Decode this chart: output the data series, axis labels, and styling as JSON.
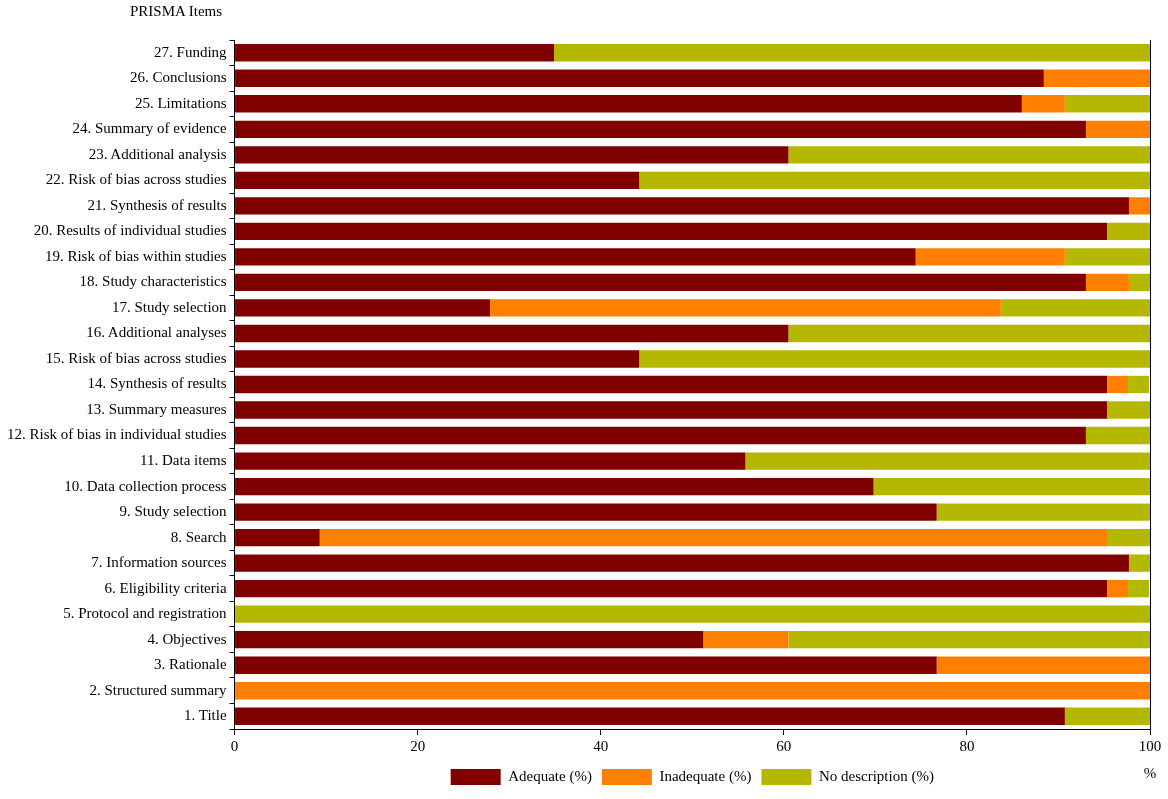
{
  "chart_data": {
    "type": "bar",
    "orientation": "horizontal",
    "stacked": true,
    "xlabel": "%",
    "ylabel": "PRISMA Items",
    "categories": [
      "27. Funding",
      "26. Conclusions",
      "25. Limitations",
      "24. Summary of evidence",
      "23. Additional analysis",
      "22. Risk of bias across studies",
      "21. Synthesis of results",
      "20. Results of individual studies",
      "19. Risk of bias within studies",
      "18. Study characteristics",
      "17. Study selection",
      "16. Additional analyses",
      "15. Risk of bias across studies",
      "14. Synthesis of results",
      "13. Summary measures",
      "12. Risk of bias in individual studies",
      "11. Data items",
      "10. Data collection process",
      "9. Study selection",
      "8. Search",
      "7. Information sources",
      "6. Eligibility criteria",
      "5. Protocol and registration",
      "4. Objectives",
      "3. Rationale",
      "2. Structured summary",
      "1. Title"
    ],
    "series": [
      {
        "name": "Adequate (%)",
        "color": "#800000",
        "values": [
          34.9,
          88.4,
          86.0,
          93.0,
          60.5,
          44.2,
          97.7,
          95.3,
          74.4,
          93.0,
          27.9,
          60.5,
          44.2,
          95.3,
          95.3,
          93.0,
          55.8,
          69.8,
          76.7,
          9.3,
          97.7,
          95.3,
          0,
          51.2,
          76.7,
          0,
          90.7
        ]
      },
      {
        "name": "Inadequate (%)",
        "color": "#ff8000",
        "values": [
          0,
          11.6,
          4.7,
          7.0,
          0,
          0,
          2.3,
          0,
          16.3,
          4.7,
          55.8,
          0,
          0,
          2.3,
          0,
          0,
          0,
          0,
          0,
          86.0,
          0,
          2.3,
          0,
          9.3,
          23.3,
          100,
          0
        ]
      },
      {
        "name": "No description (%)",
        "color": "#b5b800",
        "values": [
          65.1,
          0,
          9.3,
          0,
          39.5,
          55.8,
          0,
          4.7,
          9.3,
          2.3,
          16.3,
          39.5,
          55.8,
          2.3,
          4.7,
          7.0,
          44.2,
          30.2,
          23.3,
          4.7,
          2.3,
          2.3,
          100,
          39.5,
          0,
          0,
          9.3
        ]
      }
    ],
    "xlim": [
      0,
      100
    ],
    "xticks": [
      0,
      20,
      40,
      60,
      80,
      100
    ],
    "grid": false,
    "legend": "bottom"
  }
}
